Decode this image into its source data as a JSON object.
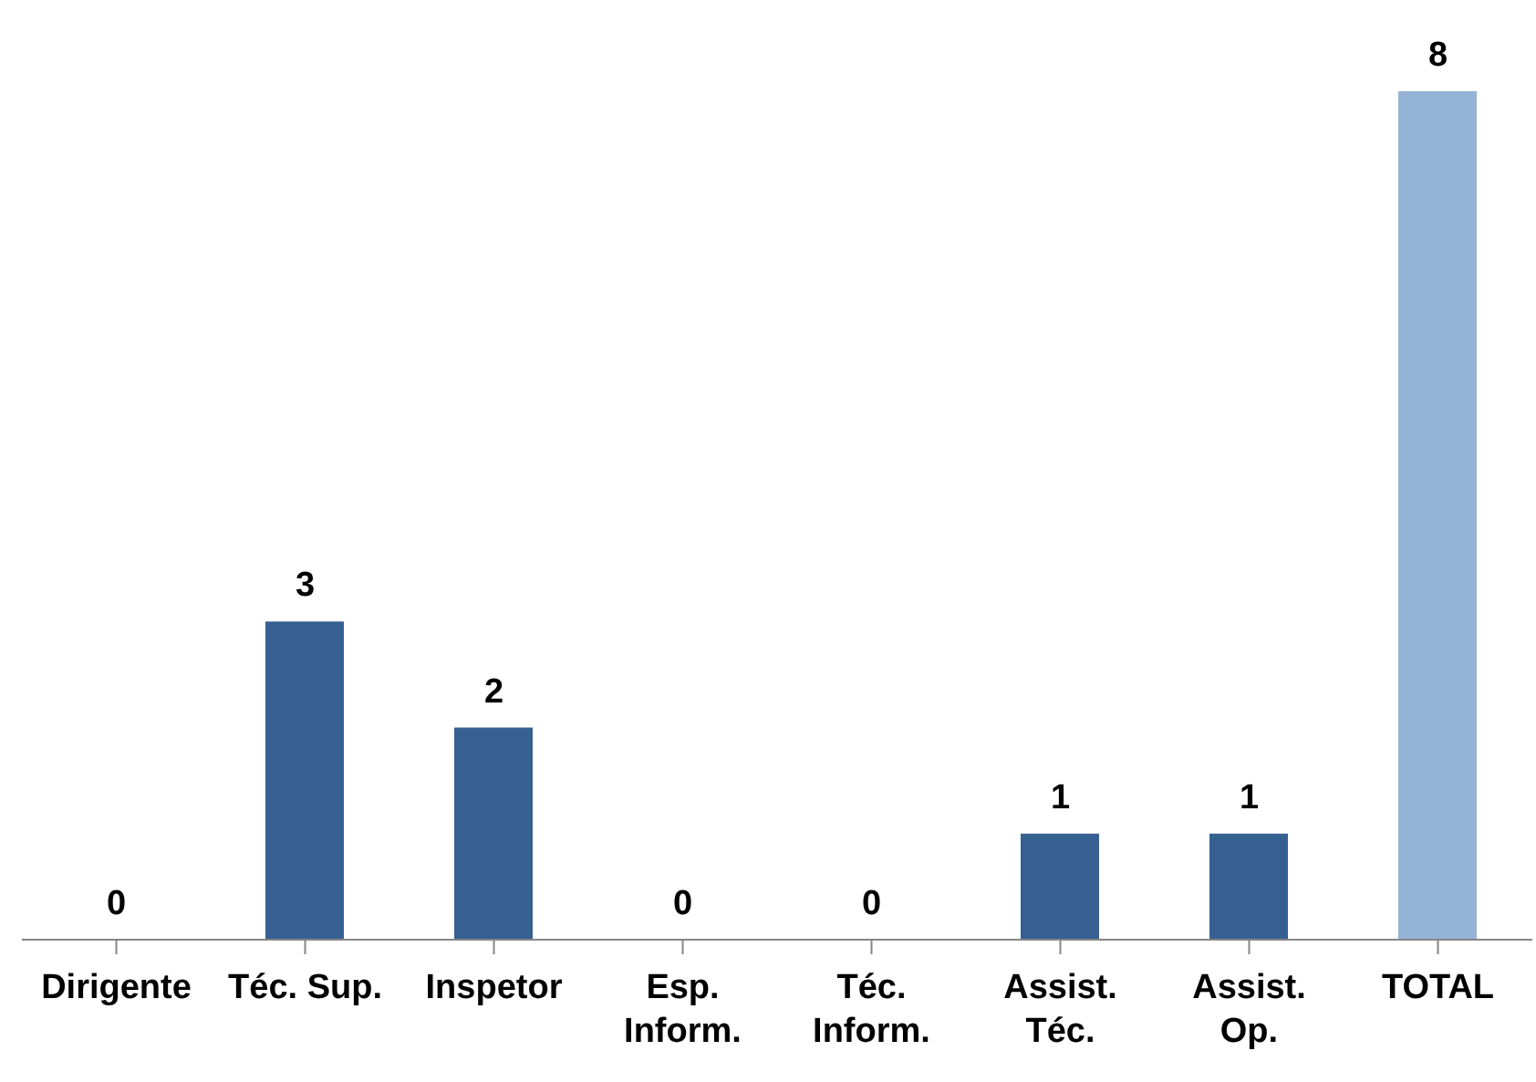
{
  "chart_data": {
    "type": "bar",
    "categories": [
      "Dirigente",
      "Téc. Sup.",
      "Inspetor",
      "Esp. Inform.",
      "Téc. Inform.",
      "Assist. Téc.",
      "Assist. Op.",
      "TOTAL"
    ],
    "values": [
      0,
      3,
      2,
      0,
      0,
      1,
      1,
      8
    ],
    "colors": [
      "#376092",
      "#376092",
      "#376092",
      "#376092",
      "#376092",
      "#376092",
      "#376092",
      "#95b3d7"
    ],
    "data_labels": true,
    "grid": false
  }
}
